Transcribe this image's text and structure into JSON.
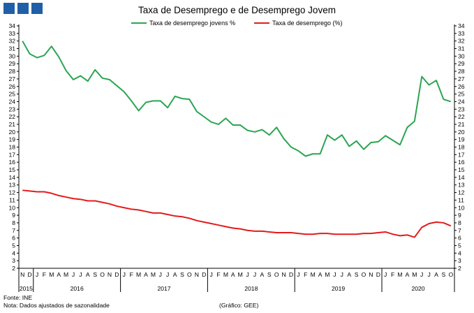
{
  "header": {
    "title": "Taxa de Desemprego e de Desemprego Jovem",
    "logo_color": "#1f5fa8"
  },
  "footer": {
    "source": "Fonte: INE",
    "note": "Nota: Dados ajustados de sazonalidade",
    "credit": "(Gráfico: GEE)"
  },
  "chart_data": {
    "type": "line",
    "x": [
      "N",
      "D",
      "J",
      "F",
      "M",
      "A",
      "M",
      "J",
      "J",
      "A",
      "S",
      "O",
      "N",
      "D",
      "J",
      "F",
      "M",
      "A",
      "M",
      "J",
      "J",
      "A",
      "S",
      "O",
      "N",
      "D",
      "J",
      "F",
      "M",
      "A",
      "M",
      "J",
      "J",
      "A",
      "S",
      "O",
      "N",
      "D",
      "J",
      "F",
      "M",
      "A",
      "M",
      "J",
      "J",
      "A",
      "S",
      "O",
      "N",
      "D",
      "J",
      "F",
      "M",
      "A",
      "M",
      "J",
      "J",
      "A",
      "S",
      "O"
    ],
    "year_labels": [
      {
        "label": "2015",
        "start": 0,
        "end": 1
      },
      {
        "label": "2016",
        "start": 2,
        "end": 13
      },
      {
        "label": "2017",
        "start": 14,
        "end": 25
      },
      {
        "label": "2018",
        "start": 26,
        "end": 37
      },
      {
        "label": "2019",
        "start": 38,
        "end": 49
      },
      {
        "label": "2020",
        "start": 50,
        "end": 59
      }
    ],
    "ylim": [
      2,
      34
    ],
    "yticks": [
      2,
      3,
      4,
      5,
      6,
      7,
      8,
      9,
      10,
      11,
      12,
      13,
      14,
      15,
      16,
      17,
      18,
      19,
      20,
      21,
      22,
      23,
      24,
      25,
      26,
      27,
      28,
      29,
      30,
      31,
      32,
      33,
      34
    ],
    "grid": false,
    "legend_position": "top",
    "series": [
      {
        "name": "Taxa de desemprego jovens %",
        "color": "#2aa552",
        "values": [
          32.0,
          30.3,
          29.8,
          30.1,
          31.3,
          29.9,
          28.1,
          26.9,
          27.4,
          26.7,
          28.2,
          27.1,
          26.9,
          26.1,
          25.3,
          24.1,
          22.8,
          23.9,
          24.1,
          24.1,
          23.2,
          24.7,
          24.4,
          24.3,
          22.7,
          22.0,
          21.3,
          21.0,
          21.8,
          20.9,
          20.9,
          20.2,
          20.0,
          20.3,
          19.6,
          20.6,
          19.1,
          18.0,
          17.5,
          16.8,
          17.1,
          17.1,
          19.6,
          18.9,
          19.6,
          18.1,
          18.8,
          17.7,
          18.6,
          18.7,
          19.5,
          18.9,
          18.3,
          20.6,
          21.4,
          27.3,
          26.2,
          26.8,
          24.3,
          24.0
        ]
      },
      {
        "name": "Taxa de desemprego (%)",
        "color": "#e31b1b",
        "values": [
          12.3,
          12.2,
          12.1,
          12.1,
          11.9,
          11.6,
          11.4,
          11.2,
          11.1,
          10.9,
          10.9,
          10.7,
          10.5,
          10.2,
          10.0,
          9.8,
          9.7,
          9.5,
          9.3,
          9.3,
          9.1,
          8.9,
          8.8,
          8.6,
          8.3,
          8.1,
          7.9,
          7.7,
          7.5,
          7.3,
          7.2,
          7.0,
          6.9,
          6.9,
          6.8,
          6.7,
          6.7,
          6.7,
          6.6,
          6.5,
          6.5,
          6.6,
          6.6,
          6.5,
          6.5,
          6.5,
          6.5,
          6.6,
          6.6,
          6.7,
          6.8,
          6.5,
          6.3,
          6.4,
          6.1,
          7.4,
          7.9,
          8.1,
          8.0,
          7.6
        ]
      }
    ]
  }
}
